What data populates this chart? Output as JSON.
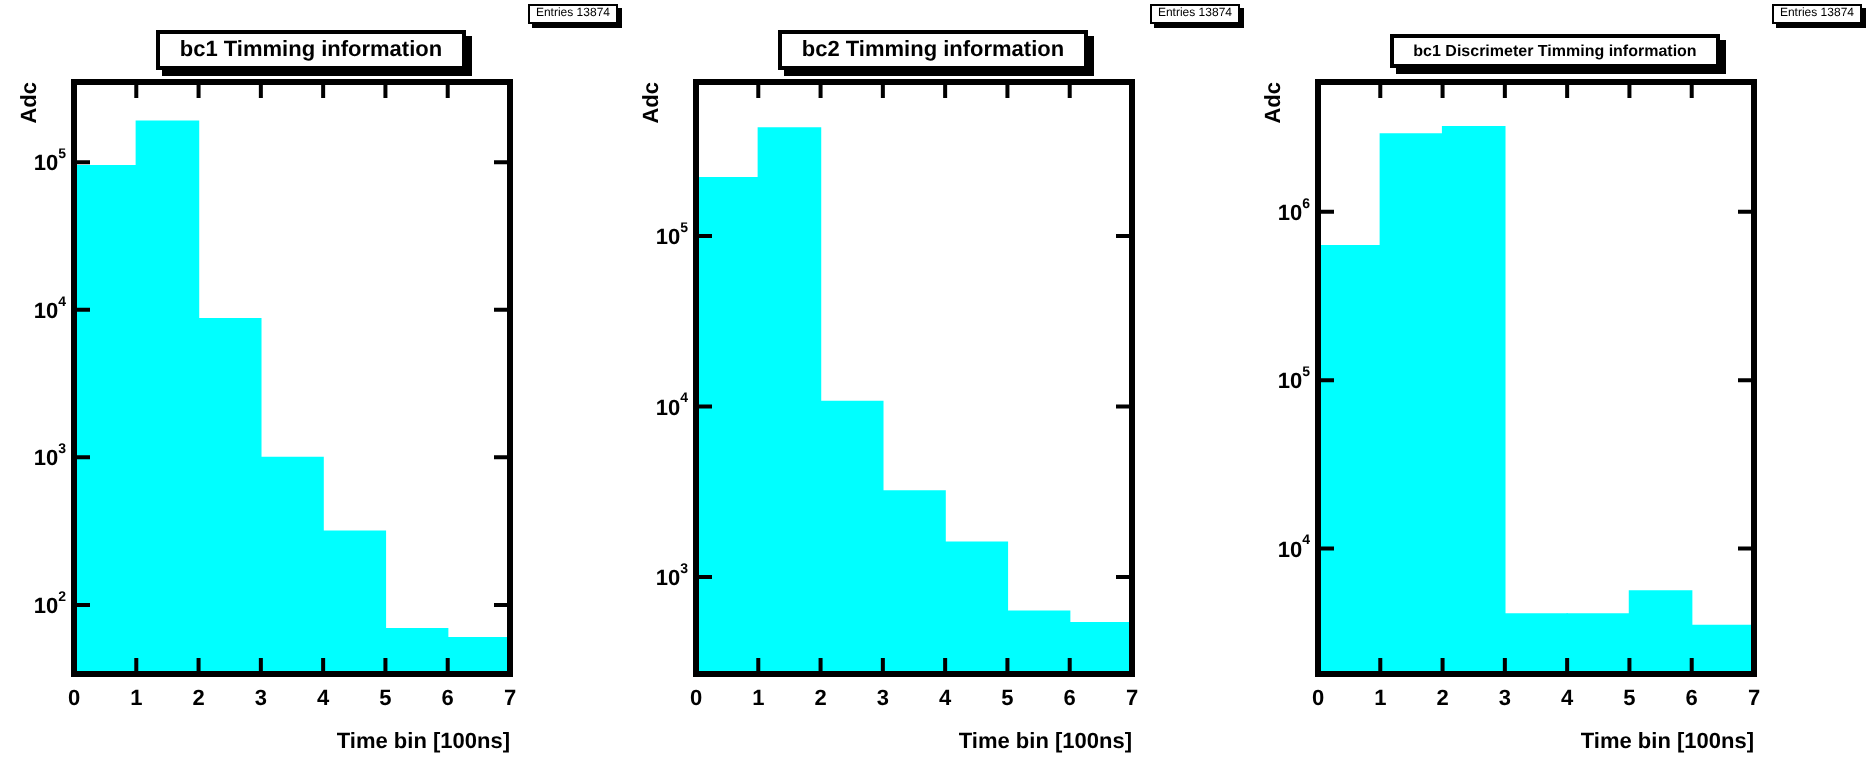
{
  "chart_data": [
    {
      "type": "histogram",
      "title": "bc1 Timming information",
      "xlabel": "Time bin [100ns]",
      "ylabel": "Adc",
      "annotations": [
        "Entries 13874"
      ],
      "log": true,
      "grid": false,
      "legend": false,
      "color": "#00ffff",
      "bins": [
        0,
        1,
        2,
        3,
        4,
        5,
        6,
        7
      ],
      "values": [
        95000,
        190000,
        8700,
        1000,
        316,
        69,
        60
      ],
      "xlim": [
        0,
        7
      ],
      "xticks": [
        0,
        1,
        2,
        3,
        4,
        5,
        6,
        7
      ],
      "ylim": [
        34,
        350000
      ],
      "yticks": [
        {
          "value": 100,
          "label": "10$^{2}$"
        },
        {
          "value": 1000,
          "label": "10$^{3}$"
        },
        {
          "value": 10000,
          "label": "10$^{4}$"
        },
        {
          "value": 100000,
          "label": "10$^{5}$"
        }
      ]
    },
    {
      "type": "histogram",
      "title": "bc2 Timming information",
      "xlabel": "Time bin [100ns]",
      "ylabel": "Adc",
      "annotations": [
        "Entries 13874"
      ],
      "log": true,
      "grid": false,
      "legend": false,
      "color": "#00ffff",
      "bins": [
        0,
        1,
        2,
        3,
        4,
        5,
        6,
        7
      ],
      "values": [
        220000,
        430000,
        10700,
        3200,
        1600,
        630,
        540
      ],
      "xlim": [
        0,
        7
      ],
      "xticks": [
        0,
        1,
        2,
        3,
        4,
        5,
        6,
        7
      ],
      "ylim": [
        270,
        800000
      ],
      "yticks": [
        {
          "value": 1000,
          "label": "10$^{3}$"
        },
        {
          "value": 10000,
          "label": "10$^{4}$"
        },
        {
          "value": 100000,
          "label": "10$^{5}$"
        }
      ]
    },
    {
      "type": "histogram",
      "title": "bc1 Discrimeter Timming information",
      "xlabel": "Time bin [100ns]",
      "ylabel": "Adc",
      "annotations": [
        "Entries 13874"
      ],
      "log": true,
      "grid": false,
      "legend": false,
      "color": "#00ffff",
      "bins": [
        0,
        1,
        2,
        3,
        4,
        5,
        6,
        7
      ],
      "values": [
        630000,
        2900000,
        3200000,
        4100,
        4100,
        5600,
        3500
      ],
      "xlim": [
        0,
        7
      ],
      "xticks": [
        0,
        1,
        2,
        3,
        4,
        5,
        6,
        7
      ],
      "ylim": [
        1800,
        5900000
      ],
      "yticks": [
        {
          "value": 10000,
          "label": "10$^{4}$"
        },
        {
          "value": 100000,
          "label": "10$^{5}$"
        },
        {
          "value": 1000000,
          "label": "10$^{6}$"
        }
      ]
    }
  ]
}
